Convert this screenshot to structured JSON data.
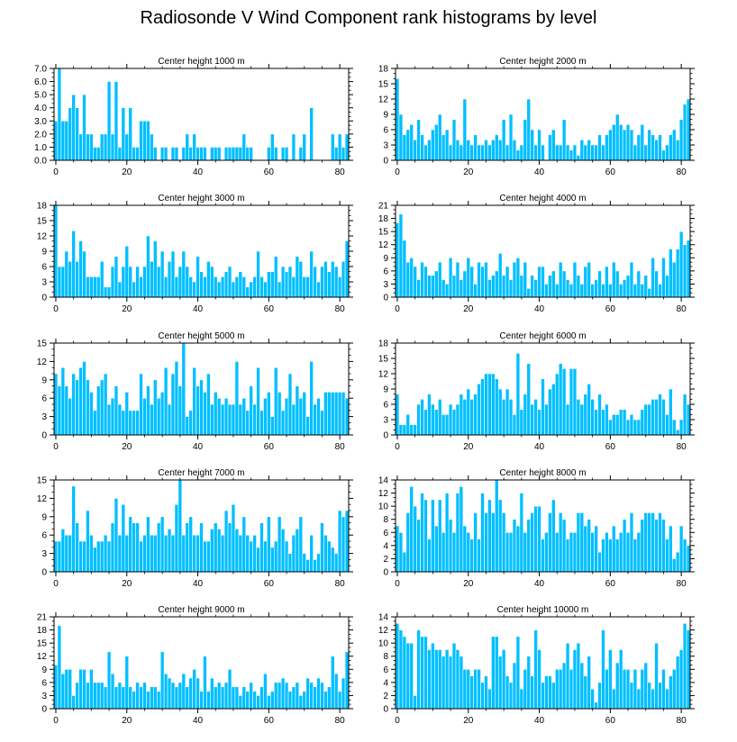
{
  "title": "Radiosonde V Wind Component rank histograms by level",
  "colors": {
    "bar_fill": "#00BFFF",
    "bar_stroke": "#ffffff",
    "axis": "#000000"
  },
  "chart_data": [
    {
      "type": "bar",
      "title": "Center height 1000 m",
      "xlim": [
        -0.5,
        82.5
      ],
      "ylim": [
        0,
        7
      ],
      "yticks": [
        0,
        1,
        2,
        3,
        4,
        5,
        6,
        7
      ],
      "ytick_format": "1dp",
      "xticks": [
        0,
        20,
        40,
        60,
        80
      ],
      "values": [
        3,
        7,
        3,
        3,
        4,
        5,
        4,
        2,
        5,
        2,
        2,
        1,
        1,
        2,
        2,
        6,
        2,
        6,
        1,
        4,
        2,
        4,
        1,
        1,
        3,
        3,
        3,
        2,
        1,
        0,
        1,
        1,
        0,
        1,
        1,
        0,
        1,
        2,
        1,
        2,
        1,
        1,
        1,
        0,
        1,
        1,
        1,
        0,
        1,
        1,
        1,
        1,
        1,
        2,
        1,
        1,
        0,
        0,
        0,
        0,
        1,
        2,
        1,
        0,
        1,
        1,
        0,
        2,
        0,
        1,
        2,
        0,
        4,
        0,
        0,
        0,
        0,
        0,
        2,
        1,
        2,
        1,
        2
      ]
    },
    {
      "type": "bar",
      "title": "Center height 2000 m",
      "xlim": [
        -0.5,
        82.5
      ],
      "ylim": [
        0,
        18
      ],
      "yticks": [
        0,
        3,
        6,
        9,
        12,
        15,
        18
      ],
      "ytick_format": "int",
      "xticks": [
        0,
        20,
        40,
        60,
        80
      ],
      "values": [
        16,
        9,
        5,
        6,
        7,
        4,
        8,
        5,
        3,
        4,
        6,
        7,
        9,
        5,
        6,
        3,
        8,
        4,
        3,
        12,
        4,
        3,
        5,
        3,
        3,
        4,
        3,
        4,
        5,
        4,
        8,
        3,
        9,
        4,
        2,
        3,
        8,
        12,
        6,
        3,
        6,
        3,
        0,
        5,
        6,
        3,
        3,
        8,
        3,
        2,
        3,
        1,
        4,
        3,
        4,
        3,
        3,
        5,
        3,
        5,
        6,
        7,
        9,
        7,
        6,
        7,
        6,
        3,
        5,
        7,
        3,
        6,
        5,
        4,
        5,
        2,
        3,
        5,
        6,
        4,
        8,
        11,
        12
      ]
    },
    {
      "type": "bar",
      "title": "Center height 3000 m",
      "xlim": [
        -0.5,
        82.5
      ],
      "ylim": [
        0,
        18
      ],
      "yticks": [
        0,
        3,
        6,
        9,
        12,
        15,
        18
      ],
      "ytick_format": "int",
      "xticks": [
        0,
        20,
        40,
        60,
        80
      ],
      "values": [
        18,
        6,
        6,
        9,
        7,
        13,
        7,
        11,
        9,
        4,
        4,
        4,
        4,
        7,
        2,
        2,
        6,
        8,
        3,
        6,
        10,
        6,
        3,
        6,
        4,
        6,
        12,
        7,
        11,
        6,
        9,
        4,
        7,
        9,
        4,
        6,
        9,
        6,
        4,
        3,
        8,
        5,
        4,
        7,
        6,
        4,
        3,
        4,
        5,
        6,
        3,
        4,
        5,
        4,
        2,
        3,
        4,
        9,
        4,
        3,
        5,
        5,
        8,
        3,
        6,
        5,
        6,
        4,
        8,
        7,
        4,
        4,
        9,
        6,
        3,
        6,
        7,
        5,
        7,
        6,
        4,
        7,
        11
      ]
    },
    {
      "type": "bar",
      "title": "Center height 4000 m",
      "xlim": [
        -0.5,
        82.5
      ],
      "ylim": [
        0,
        21
      ],
      "yticks": [
        0,
        3,
        6,
        9,
        12,
        15,
        18,
        21
      ],
      "ytick_format": "int",
      "xticks": [
        0,
        20,
        40,
        60,
        80
      ],
      "values": [
        17,
        19,
        13,
        8,
        9,
        7,
        4,
        8,
        7,
        5,
        5,
        6,
        8,
        4,
        3,
        9,
        5,
        8,
        4,
        6,
        9,
        7,
        3,
        8,
        7,
        8,
        4,
        5,
        6,
        10,
        5,
        7,
        4,
        8,
        9,
        5,
        8,
        2,
        5,
        4,
        7,
        7,
        3,
        5,
        6,
        3,
        8,
        6,
        4,
        3,
        8,
        5,
        3,
        7,
        8,
        3,
        4,
        6,
        3,
        7,
        3,
        8,
        6,
        3,
        4,
        5,
        8,
        3,
        6,
        3,
        5,
        2,
        9,
        6,
        3,
        9,
        5,
        11,
        8,
        11,
        15,
        12,
        13
      ]
    },
    {
      "type": "bar",
      "title": "Center height 5000 m",
      "xlim": [
        -0.5,
        82.5
      ],
      "ylim": [
        0,
        15
      ],
      "yticks": [
        0,
        3,
        6,
        9,
        12,
        15
      ],
      "ytick_format": "int",
      "xticks": [
        0,
        20,
        40,
        60,
        80
      ],
      "values": [
        10,
        8,
        11,
        8,
        6,
        10,
        9,
        11,
        12,
        9,
        7,
        4,
        8,
        9,
        10,
        5,
        6,
        8,
        5,
        4,
        7,
        4,
        4,
        4,
        10,
        6,
        8,
        5,
        9,
        6,
        7,
        11,
        5,
        10,
        12,
        8,
        15,
        3,
        4,
        11,
        8,
        9,
        7,
        10,
        5,
        7,
        6,
        5,
        6,
        5,
        5,
        12,
        5,
        6,
        4,
        8,
        5,
        11,
        4,
        6,
        7,
        3,
        11,
        7,
        4,
        6,
        10,
        5,
        8,
        6,
        7,
        3,
        12,
        5,
        6,
        4,
        7,
        7,
        7,
        7,
        7,
        7,
        6
      ]
    },
    {
      "type": "bar",
      "title": "Center height 6000 m",
      "xlim": [
        -0.5,
        82.5
      ],
      "ylim": [
        0,
        18
      ],
      "yticks": [
        0,
        3,
        6,
        9,
        12,
        15,
        18
      ],
      "ytick_format": "int",
      "xticks": [
        0,
        20,
        40,
        60,
        80
      ],
      "values": [
        8,
        2,
        2,
        4,
        2,
        2,
        6,
        7,
        5,
        8,
        6,
        5,
        7,
        4,
        4,
        6,
        5,
        6,
        8,
        7,
        9,
        7,
        8,
        10,
        11,
        12,
        12,
        12,
        11,
        9,
        7,
        9,
        7,
        4,
        16,
        5,
        8,
        14,
        6,
        7,
        5,
        11,
        6,
        9,
        10,
        12,
        14,
        13,
        6,
        13,
        13,
        7,
        6,
        8,
        10,
        7,
        5,
        8,
        5,
        6,
        3,
        4,
        4,
        5,
        5,
        3,
        4,
        3,
        3,
        5,
        6,
        6,
        7,
        7,
        8,
        7,
        4,
        9,
        3,
        1,
        3,
        8,
        6
      ]
    },
    {
      "type": "bar",
      "title": "Center height 7000 m",
      "xlim": [
        -0.5,
        82.5
      ],
      "ylim": [
        0,
        15
      ],
      "yticks": [
        0,
        3,
        6,
        9,
        12,
        15
      ],
      "ytick_format": "int",
      "xticks": [
        0,
        20,
        40,
        60,
        80
      ],
      "values": [
        5,
        5,
        7,
        6,
        6,
        14,
        8,
        5,
        5,
        10,
        6,
        4,
        5,
        5,
        6,
        5,
        8,
        12,
        6,
        11,
        6,
        9,
        8,
        8,
        5,
        6,
        9,
        6,
        6,
        8,
        9,
        6,
        7,
        6,
        11,
        15,
        6,
        8,
        9,
        6,
        6,
        8,
        5,
        5,
        7,
        8,
        7,
        6,
        10,
        8,
        11,
        7,
        6,
        9,
        6,
        5,
        6,
        4,
        8,
        5,
        9,
        4,
        5,
        9,
        7,
        5,
        3,
        6,
        7,
        9,
        3,
        2,
        6,
        2,
        3,
        8,
        6,
        5,
        4,
        3,
        10,
        9,
        10
      ]
    },
    {
      "type": "bar",
      "title": "Center height 8000 m",
      "xlim": [
        -0.5,
        82.5
      ],
      "ylim": [
        0,
        14
      ],
      "yticks": [
        0,
        2,
        4,
        6,
        8,
        10,
        12,
        14
      ],
      "ytick_format": "int",
      "xticks": [
        0,
        20,
        40,
        60,
        80
      ],
      "values": [
        7,
        6,
        3,
        9,
        13,
        10,
        8,
        12,
        11,
        5,
        11,
        7,
        11,
        6,
        12,
        8,
        6,
        12,
        13,
        7,
        6,
        5,
        9,
        5,
        12,
        9,
        11,
        9,
        14,
        11,
        9,
        6,
        6,
        8,
        7,
        12,
        6,
        8,
        9,
        10,
        10,
        5,
        6,
        9,
        11,
        6,
        9,
        8,
        5,
        6,
        6,
        9,
        9,
        7,
        8,
        6,
        7,
        3,
        5,
        6,
        5,
        7,
        5,
        6,
        8,
        6,
        9,
        5,
        6,
        8,
        9,
        9,
        9,
        8,
        9,
        8,
        5,
        7,
        2,
        3,
        7,
        5,
        4
      ]
    },
    {
      "type": "bar",
      "title": "Center height 9000 m",
      "xlim": [
        -0.5,
        82.5
      ],
      "ylim": [
        0,
        21
      ],
      "yticks": [
        0,
        3,
        6,
        9,
        12,
        15,
        18,
        21
      ],
      "ytick_format": "int",
      "xticks": [
        0,
        20,
        40,
        60,
        80
      ],
      "values": [
        10,
        19,
        8,
        9,
        9,
        3,
        6,
        9,
        9,
        6,
        9,
        6,
        6,
        6,
        5,
        13,
        8,
        5,
        6,
        5,
        12,
        5,
        4,
        6,
        5,
        6,
        4,
        5,
        5,
        4,
        13,
        8,
        7,
        6,
        5,
        6,
        8,
        5,
        7,
        9,
        7,
        4,
        12,
        4,
        7,
        5,
        6,
        5,
        6,
        9,
        5,
        5,
        3,
        5,
        4,
        6,
        4,
        3,
        5,
        8,
        3,
        4,
        6,
        6,
        7,
        6,
        4,
        5,
        6,
        3,
        4,
        7,
        6,
        5,
        7,
        6,
        4,
        5,
        12,
        8,
        4,
        7,
        13
      ]
    },
    {
      "type": "bar",
      "title": "Center height 10000 m",
      "xlim": [
        -0.5,
        82.5
      ],
      "ylim": [
        0,
        14
      ],
      "yticks": [
        0,
        2,
        4,
        6,
        8,
        10,
        12,
        14
      ],
      "ytick_format": "int",
      "xticks": [
        0,
        20,
        40,
        60,
        80
      ],
      "values": [
        13,
        12,
        11,
        10,
        10,
        2,
        12,
        11,
        11,
        9,
        10,
        9,
        9,
        8,
        9,
        8,
        10,
        9,
        8,
        6,
        6,
        5,
        6,
        6,
        4,
        5,
        3,
        11,
        11,
        8,
        9,
        5,
        4,
        7,
        11,
        3,
        6,
        8,
        5,
        12,
        9,
        4,
        5,
        5,
        4,
        6,
        6,
        7,
        10,
        6,
        9,
        10,
        7,
        5,
        8,
        3,
        1,
        4,
        12,
        6,
        9,
        3,
        7,
        9,
        6,
        6,
        4,
        6,
        3,
        6,
        7,
        4,
        3,
        10,
        4,
        6,
        3,
        5,
        6,
        8,
        9,
        13,
        12
      ]
    }
  ]
}
